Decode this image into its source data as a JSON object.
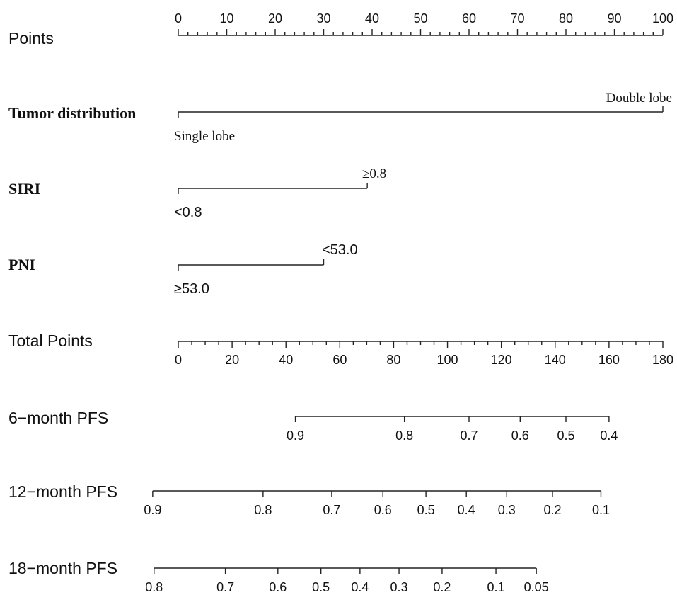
{
  "chart_data": {
    "type": "nomogram",
    "rows": [
      {
        "id": "points",
        "label": "Points",
        "kind": "scale",
        "ticks": [
          "0",
          "10",
          "20",
          "30",
          "40",
          "50",
          "60",
          "70",
          "80",
          "90",
          "100"
        ],
        "range": [
          0,
          100
        ],
        "minor_step": 2
      },
      {
        "id": "tumor_distribution",
        "label": "Tumor distribution",
        "kind": "categorical",
        "levels": [
          {
            "label": "Single lobe",
            "points": 0
          },
          {
            "label": "Double lobe",
            "points": 100
          }
        ]
      },
      {
        "id": "siri",
        "label": "SIRI",
        "kind": "categorical",
        "levels": [
          {
            "label": "<0.8",
            "points": 0
          },
          {
            "label": "≥0.8",
            "points": 39
          }
        ]
      },
      {
        "id": "pni",
        "label": "PNI",
        "kind": "categorical",
        "levels": [
          {
            "label": "≥53.0",
            "points": 0
          },
          {
            "label": "<53.0",
            "points": 30
          }
        ]
      },
      {
        "id": "total_points",
        "label": "Total Points",
        "kind": "scale",
        "ticks": [
          "0",
          "20",
          "40",
          "60",
          "80",
          "100",
          "120",
          "140",
          "160",
          "180"
        ],
        "range": [
          0,
          180
        ],
        "minor_step": 5
      },
      {
        "id": "pfs6",
        "label": "6−month PFS",
        "kind": "probability",
        "ticks": [
          {
            "label": "0.9",
            "total_points": 43.5
          },
          {
            "label": "0.8",
            "total_points": 84
          },
          {
            "label": "0.7",
            "total_points": 108
          },
          {
            "label": "0.6",
            "total_points": 127
          },
          {
            "label": "0.5",
            "total_points": 144
          },
          {
            "label": "0.4",
            "total_points": 160
          }
        ]
      },
      {
        "id": "pfs12",
        "label": "12−month PFS",
        "kind": "probability",
        "ticks": [
          {
            "label": "0.9",
            "total_points": -9.5
          },
          {
            "label": "0.8",
            "total_points": 31.5
          },
          {
            "label": "0.7",
            "total_points": 57
          },
          {
            "label": "0.6",
            "total_points": 76
          },
          {
            "label": "0.5",
            "total_points": 92
          },
          {
            "label": "0.4",
            "total_points": 107
          },
          {
            "label": "0.3",
            "total_points": 122
          },
          {
            "label": "0.2",
            "total_points": 139
          },
          {
            "label": "0.1",
            "total_points": 157
          }
        ]
      },
      {
        "id": "pfs18",
        "label": "18−month PFS",
        "kind": "probability",
        "ticks": [
          {
            "label": "0.8",
            "total_points": -9
          },
          {
            "label": "0.7",
            "total_points": 17.5
          },
          {
            "label": "0.6",
            "total_points": 37
          },
          {
            "label": "0.5",
            "total_points": 53
          },
          {
            "label": "0.4",
            "total_points": 67.5
          },
          {
            "label": "0.3",
            "total_points": 82
          },
          {
            "label": "0.2",
            "total_points": 98
          },
          {
            "label": "0.1",
            "total_points": 118
          },
          {
            "label": "0.05",
            "total_points": 133
          }
        ]
      }
    ]
  }
}
